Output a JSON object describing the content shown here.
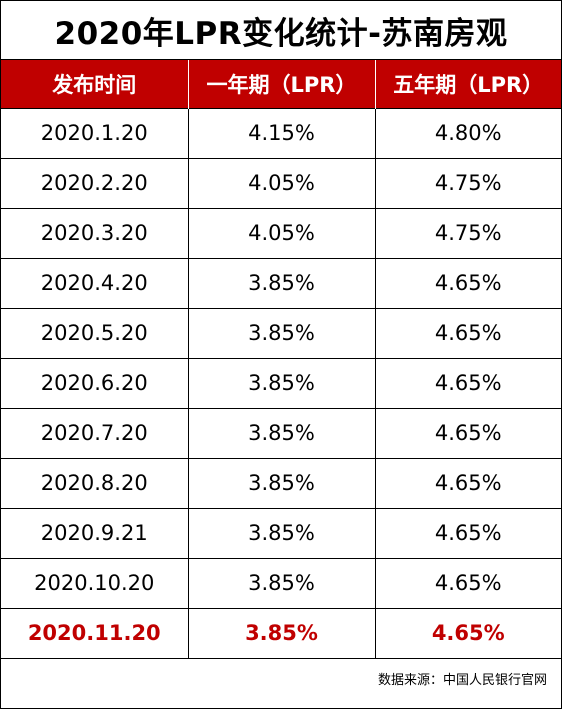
{
  "title": "2020年LPR变化统计-苏南房观",
  "table": {
    "headers": [
      "发布时间",
      "一年期（LPR）",
      "五年期（LPR）"
    ],
    "rows": [
      [
        "2020.1.20",
        "4.15%",
        "4.80%"
      ],
      [
        "2020.2.20",
        "4.05%",
        "4.75%"
      ],
      [
        "2020.3.20",
        "4.05%",
        "4.75%"
      ],
      [
        "2020.4.20",
        "3.85%",
        "4.65%"
      ],
      [
        "2020.5.20",
        "3.85%",
        "4.65%"
      ],
      [
        "2020.6.20",
        "3.85%",
        "4.65%"
      ],
      [
        "2020.7.20",
        "3.85%",
        "4.65%"
      ],
      [
        "2020.8.20",
        "3.85%",
        "4.65%"
      ],
      [
        "2020.9.21",
        "3.85%",
        "4.65%"
      ],
      [
        "2020.10.20",
        "3.85%",
        "4.65%"
      ],
      [
        "2020.11.20",
        "3.85%",
        "4.65%"
      ]
    ],
    "highlight_row_index": 10,
    "header_bg": "#c00000",
    "highlight_color": "#c00000"
  },
  "source": "数据来源：中国人民银行官网"
}
